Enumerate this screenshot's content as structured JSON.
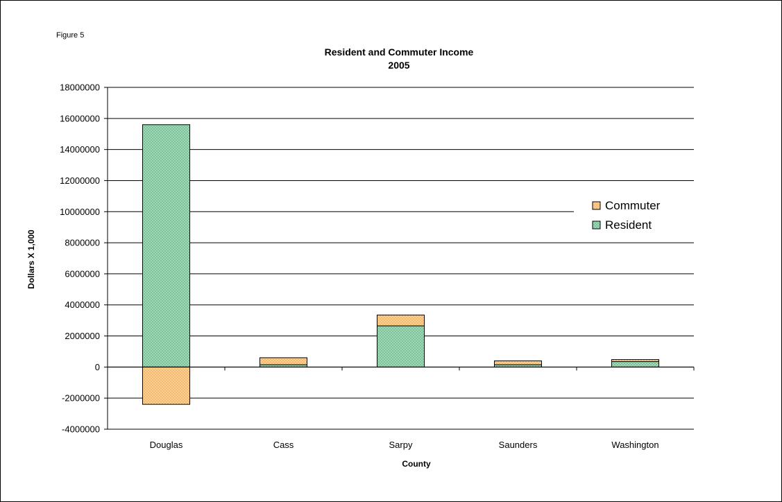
{
  "figure_label": "Figure 5",
  "chart_data": {
    "type": "bar",
    "stacked": true,
    "title": "Resident and Commuter Income",
    "subtitle": "2005",
    "xlabel": "County",
    "ylabel": "Dollars X 1,000",
    "ylim": [
      -4000000,
      18000000
    ],
    "ytick_step": 2000000,
    "ytick_labels": [
      "-4000000",
      "-2000000",
      "0",
      "2000000",
      "4000000",
      "6000000",
      "8000000",
      "10000000",
      "12000000",
      "14000000",
      "16000000",
      "18000000"
    ],
    "categories": [
      "Douglas",
      "Cass",
      "Sarpy",
      "Saunders",
      "Washington"
    ],
    "series": [
      {
        "name": "Resident",
        "color": "#9ed6b6",
        "values": [
          15600000,
          150000,
          2650000,
          150000,
          350000
        ]
      },
      {
        "name": "Commuter",
        "color": "#fcc98a",
        "values": [
          -2400000,
          450000,
          700000,
          250000,
          130000
        ]
      }
    ],
    "legend_order": [
      "Commuter",
      "Resident"
    ],
    "grid": true,
    "legend_position": "right"
  }
}
